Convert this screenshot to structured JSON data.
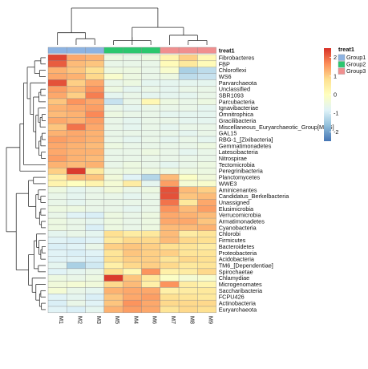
{
  "chart_data": {
    "type": "heatmap",
    "title": "",
    "xlabel": "",
    "ylabel": "",
    "columns": [
      "M1",
      "M2",
      "M3",
      "M5",
      "M4",
      "M6",
      "M7",
      "M8",
      "M9"
    ],
    "rows": [
      "Fibrobacteres",
      "FBP",
      "Chloroflexi",
      "WS6",
      "Parvarchaeota",
      "Unclassified",
      "SBR1093",
      "Parcubacteria",
      "Ignavibacteriae",
      "Omnitrophica",
      "Gracilibacteria",
      "Miscellaneous_Euryarchaeotic_Group[MEG]",
      "GAL15",
      "RBG-1_[Zixibacteria]",
      "Gemmatimonadetes",
      "Latescibacteria",
      "Nitrospirae",
      "Tectomicrobia",
      "Peregrinibacteria",
      "Planctomycetes",
      "WWE3",
      "Aminicenantes",
      "Candidatus_Berkelbacteria",
      "Unassigned",
      "Elusimicrobia",
      "Verrucomicrobia",
      "Armatimonadetes",
      "Cyanobacteria",
      "Chlorobi",
      "Firmicutes",
      "Bacteroidetes",
      "Proteobacteria",
      "Acidobacteria",
      "TM6_[Dependentiae]",
      "Spirochaetae",
      "Chlamydiae",
      "Microgenomates",
      "Saccharibacteria",
      "FCPU426",
      "Actinobacteria",
      "Euryarchaeota"
    ],
    "values": [
      [
        2.3,
        1.4,
        1.3,
        -0.5,
        -0.6,
        -0.5,
        0.3,
        1.0,
        0.2
      ],
      [
        2.1,
        1.2,
        1.1,
        -0.6,
        -0.6,
        -0.6,
        0.1,
        0.6,
        0.1
      ],
      [
        1.3,
        1.1,
        0.8,
        -0.5,
        -0.5,
        -0.6,
        -0.2,
        -1.4,
        -1.2
      ],
      [
        1.4,
        1.3,
        0.9,
        -0.2,
        -0.5,
        -0.6,
        -0.5,
        -1.2,
        -1.1
      ],
      [
        2.2,
        1.0,
        1.4,
        -0.6,
        -0.5,
        -0.7,
        -0.7,
        -0.7,
        -0.7
      ],
      [
        1.5,
        1.2,
        1.6,
        -0.5,
        -0.7,
        -0.6,
        -0.7,
        -0.6,
        -0.6
      ],
      [
        1.4,
        1.0,
        1.8,
        -0.7,
        -0.6,
        -0.7,
        -0.7,
        -0.7,
        -0.6
      ],
      [
        1.1,
        1.6,
        1.4,
        -1.1,
        -0.6,
        0.2,
        -0.5,
        -0.6,
        -0.5
      ],
      [
        1.3,
        1.4,
        1.5,
        -0.6,
        -0.7,
        -0.6,
        -0.6,
        -0.6,
        -0.7
      ],
      [
        1.2,
        1.3,
        1.7,
        -0.5,
        -0.6,
        -0.6,
        -0.7,
        -0.7,
        -0.7
      ],
      [
        1.4,
        1.3,
        1.5,
        -0.6,
        -0.7,
        -0.6,
        -0.6,
        -0.7,
        -0.7
      ],
      [
        1.1,
        1.9,
        1.4,
        -0.6,
        -0.7,
        -0.6,
        -0.7,
        -0.6,
        -0.6
      ],
      [
        1.3,
        1.4,
        1.3,
        -0.6,
        -0.6,
        -0.6,
        -0.6,
        -0.7,
        -0.6
      ],
      [
        1.5,
        1.4,
        1.3,
        -0.6,
        -0.7,
        -0.6,
        -0.7,
        -0.6,
        -0.7
      ],
      [
        1.4,
        1.3,
        1.2,
        -0.5,
        -0.6,
        -0.6,
        -0.6,
        -0.6,
        -0.5
      ],
      [
        1.4,
        1.3,
        1.3,
        -0.6,
        -0.6,
        -0.5,
        -0.6,
        -0.7,
        -0.6
      ],
      [
        1.5,
        1.3,
        1.2,
        -0.6,
        -0.6,
        -0.6,
        -0.6,
        -0.6,
        -0.6
      ],
      [
        1.3,
        1.2,
        1.3,
        -0.6,
        -0.5,
        -0.6,
        -0.7,
        -0.6,
        -0.5
      ],
      [
        1.0,
        2.4,
        0.6,
        -0.5,
        -0.5,
        -0.5,
        -0.5,
        -0.5,
        -0.5
      ],
      [
        0.4,
        1.2,
        1.1,
        -0.4,
        -0.8,
        -1.3,
        1.2,
        -0.1,
        -0.4
      ],
      [
        0.3,
        0.0,
        0.3,
        -0.3,
        0.5,
        -0.7,
        1.5,
        -0.3,
        -0.2
      ],
      [
        -0.5,
        -0.7,
        -0.6,
        -0.4,
        -0.6,
        -0.5,
        2.2,
        1.2,
        1.0
      ],
      [
        -0.6,
        -0.7,
        -0.6,
        -0.6,
        -0.7,
        -0.6,
        2.2,
        1.1,
        1.2
      ],
      [
        -0.6,
        -0.7,
        -0.6,
        -0.6,
        -0.6,
        -0.6,
        1.9,
        0.6,
        1.4
      ],
      [
        -0.5,
        -0.5,
        -0.6,
        -0.6,
        -0.7,
        -0.6,
        1.6,
        1.2,
        1.5
      ],
      [
        -0.6,
        -0.8,
        -0.9,
        -0.5,
        -0.6,
        -0.5,
        1.4,
        1.3,
        1.2
      ],
      [
        -0.5,
        -0.6,
        -0.7,
        -0.5,
        -0.6,
        -0.5,
        1.4,
        1.4,
        1.1
      ],
      [
        -0.5,
        -0.6,
        -0.9,
        -0.5,
        -0.6,
        -0.5,
        1.2,
        1.2,
        1.3
      ],
      [
        -0.7,
        -0.6,
        -0.7,
        0.8,
        0.5,
        0.6,
        1.2,
        0.5,
        0.7
      ],
      [
        -0.8,
        -0.9,
        -0.8,
        0.6,
        0.9,
        0.9,
        1.2,
        0.9,
        0.8
      ],
      [
        -0.9,
        -0.8,
        -0.6,
        1.0,
        1.1,
        1.0,
        0.8,
        0.7,
        0.5
      ],
      [
        -0.8,
        -0.9,
        -0.8,
        0.7,
        1.1,
        1.0,
        1.0,
        0.7,
        0.7
      ],
      [
        -0.8,
        -0.8,
        -0.9,
        0.8,
        1.0,
        1.0,
        0.7,
        0.9,
        0.8
      ],
      [
        -0.7,
        -1.4,
        -1.0,
        0.4,
        0.9,
        1.0,
        0.9,
        0.6,
        0.7
      ],
      [
        -0.8,
        -0.7,
        -0.6,
        0.8,
        0.2,
        1.6,
        0.4,
        0.5,
        0.9
      ],
      [
        -0.5,
        -0.6,
        -0.5,
        2.4,
        1.1,
        0.6,
        -0.1,
        -0.3,
        -0.2
      ],
      [
        -0.4,
        -0.3,
        -0.4,
        0.9,
        1.2,
        0.4,
        1.6,
        0.5,
        0.3
      ],
      [
        -0.3,
        -0.6,
        -0.7,
        1.3,
        1.4,
        1.4,
        0.4,
        0.5,
        0.6
      ],
      [
        -0.8,
        -0.7,
        -0.9,
        1.1,
        1.4,
        1.5,
        0.8,
        0.7,
        0.6
      ],
      [
        -0.9,
        -0.6,
        -0.8,
        1.1,
        1.6,
        1.4,
        0.9,
        0.9,
        0.9
      ],
      [
        -0.8,
        -0.9,
        -0.7,
        1.3,
        1.5,
        1.4,
        0.7,
        0.9,
        0.8
      ]
    ],
    "color_scale": {
      "min": -2.5,
      "max": 2.5,
      "stops": [
        "#4575b4",
        "#91bfdb",
        "#e0f3f8",
        "#ffffbf",
        "#fee090",
        "#fc8d59",
        "#d73027"
      ],
      "ticks": [
        2,
        1,
        0,
        -1,
        -2
      ]
    },
    "column_annotation": {
      "name": "treat1",
      "groups": [
        "Group1",
        "Group1",
        "Group1",
        "Group2",
        "Group2",
        "Group2",
        "Group3",
        "Group3",
        "Group3"
      ],
      "legend": [
        {
          "label": "Group1",
          "color": "#8db3e2"
        },
        {
          "label": "Group2",
          "color": "#2bc76e"
        },
        {
          "label": "Group3",
          "color": "#f08f8f"
        }
      ]
    },
    "column_dendrogram": [
      [
        3,
        5,
        0.25
      ],
      [
        4,
        9,
        0.45
      ],
      [
        7,
        8,
        0.25
      ],
      [
        6,
        11,
        0.55
      ],
      [
        1,
        2,
        0.35
      ],
      [
        0,
        13,
        0.7
      ],
      [
        10,
        12,
        1.0
      ],
      [
        14,
        15,
        2.1
      ]
    ],
    "row_dendrogram": [
      [
        9,
        10,
        0.3
      ],
      [
        41,
        11,
        0.45
      ],
      [
        8,
        42,
        0.6
      ],
      [
        12,
        13,
        0.3
      ],
      [
        44,
        14,
        0.4
      ],
      [
        15,
        16,
        0.35
      ],
      [
        45,
        46,
        0.55
      ],
      [
        43,
        47,
        0.8
      ],
      [
        5,
        6,
        0.4
      ],
      [
        49,
        7,
        0.55
      ],
      [
        50,
        48,
        1.0
      ],
      [
        4,
        51,
        1.25
      ],
      [
        2,
        3,
        0.5
      ],
      [
        0,
        1,
        0.4
      ],
      [
        54,
        53,
        0.9
      ],
      [
        55,
        52,
        1.5
      ],
      [
        56,
        17,
        1.8
      ],
      [
        57,
        18,
        2.1
      ],
      [
        19,
        20,
        1.0
      ],
      [
        22,
        23,
        0.4
      ],
      [
        60,
        21,
        0.6
      ],
      [
        24,
        25,
        0.4
      ],
      [
        26,
        27,
        0.35
      ],
      [
        62,
        63,
        0.5
      ],
      [
        61,
        64,
        0.8
      ],
      [
        65,
        59,
        1.4
      ],
      [
        30,
        31,
        0.3
      ],
      [
        67,
        32,
        0.4
      ],
      [
        68,
        29,
        0.55
      ],
      [
        69,
        28,
        0.75
      ],
      [
        33,
        34,
        0.6
      ],
      [
        70,
        71,
        0.95
      ],
      [
        37,
        38,
        0.4
      ],
      [
        39,
        40,
        0.35
      ],
      [
        73,
        74,
        0.5
      ],
      [
        75,
        36,
        0.8
      ],
      [
        76,
        35,
        1.1
      ],
      [
        72,
        77,
        1.4
      ],
      [
        66,
        78,
        2.4
      ],
      [
        58,
        79,
        3.2
      ]
    ]
  }
}
